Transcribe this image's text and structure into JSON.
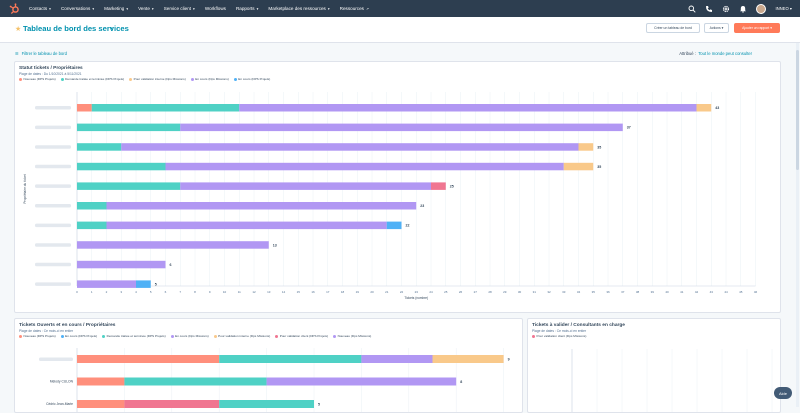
{
  "nav": {
    "items": [
      {
        "label": "Contacts",
        "caret": true
      },
      {
        "label": "Conversations",
        "caret": true
      },
      {
        "label": "Marketing",
        "caret": true
      },
      {
        "label": "Vente",
        "caret": true
      },
      {
        "label": "Service client",
        "caret": true
      },
      {
        "label": "Workflows",
        "caret": false
      },
      {
        "label": "Rapports",
        "caret": true
      },
      {
        "label": "Marketplace des ressources",
        "caret": true
      },
      {
        "label": "Ressources",
        "caret": false
      }
    ],
    "account": "INNEO",
    "icons": [
      "search-icon",
      "phone-icon",
      "gear-icon",
      "bell-icon"
    ]
  },
  "header": {
    "title": "Tableau de bord des services",
    "create_dashboard": "Créer un tableau de bord",
    "actions": "Actions",
    "add_report": "Ajouter un rapport"
  },
  "filter": {
    "link": "Filtrer le tableau de bord",
    "assigned_prefix": "Attribué :",
    "assigned_value": "Tout le monde peut consulter"
  },
  "colors": {
    "Nouveau": "#ff8f7c",
    "Demande traitée et terminée": "#4fd1c5",
    "Pour validation interne": "#f9c98a",
    "En cours": "#b197f3",
    "En cours IPS": "#4fb1f6",
    "Pour validation client": "#f07691"
  },
  "card1": {
    "title": "Statut tickets / Propriétaires",
    "subtitle": "Plage de dates : Du 1/10/2021 à 5/11/2021",
    "legend": [
      {
        "name": "Nouveau (DPS Projets)",
        "key": "Nouveau"
      },
      {
        "name": "Demande traitée et terminée (DPS Projets)",
        "key": "Demande traitée et terminée"
      },
      {
        "name": "Pour validation interne (Dps Missions)",
        "key": "Pour validation interne"
      },
      {
        "name": "En cours (Dps Missions)",
        "key": "En cours"
      },
      {
        "name": "En cours (DPS Projets)",
        "key": "En cours IPS"
      }
    ],
    "chart_data": {
      "type": "bar",
      "orientation": "horizontal",
      "stacked": true,
      "xlabel": "Tickets (nombre)",
      "ylabel": "Propriétaire du ticket",
      "xlim": [
        0,
        46
      ],
      "xticks": [
        0,
        1,
        2,
        3,
        4,
        5,
        6,
        7,
        8,
        9,
        10,
        11,
        12,
        13,
        14,
        15,
        16,
        17,
        18,
        19,
        20,
        21,
        22,
        23,
        24,
        25,
        26,
        27,
        28,
        29,
        30,
        31,
        32,
        33,
        34,
        35,
        36,
        37,
        38,
        39,
        40,
        41,
        42,
        43,
        44,
        45,
        46
      ],
      "rows": [
        {
          "total": 43,
          "segments": [
            {
              "key": "Nouveau",
              "value": 1
            },
            {
              "key": "Demande traitée et terminée",
              "value": 10
            },
            {
              "key": "En cours",
              "value": 31
            },
            {
              "key": "Pour validation interne",
              "value": 1
            }
          ]
        },
        {
          "total": 37,
          "segments": [
            {
              "key": "Demande traitée et terminée",
              "value": 7
            },
            {
              "key": "En cours",
              "value": 30
            }
          ]
        },
        {
          "total": 35,
          "segments": [
            {
              "key": "Demande traitée et terminée",
              "value": 3
            },
            {
              "key": "En cours",
              "value": 31
            },
            {
              "key": "Pour validation interne",
              "value": 1
            }
          ]
        },
        {
          "total": 35,
          "segments": [
            {
              "key": "Demande traitée et terminée",
              "value": 6
            },
            {
              "key": "En cours",
              "value": 27
            },
            {
              "key": "Pour validation interne",
              "value": 2
            }
          ]
        },
        {
          "total": 25,
          "segments": [
            {
              "key": "Demande traitée et terminée",
              "value": 7
            },
            {
              "key": "En cours",
              "value": 17
            },
            {
              "key": "Pour validation client",
              "value": 1
            }
          ]
        },
        {
          "total": 23,
          "segments": [
            {
              "key": "Demande traitée et terminée",
              "value": 2
            },
            {
              "key": "En cours",
              "value": 21
            }
          ]
        },
        {
          "total": 22,
          "segments": [
            {
              "key": "Demande traitée et terminée",
              "value": 2
            },
            {
              "key": "En cours",
              "value": 19
            },
            {
              "key": "En cours IPS",
              "value": 1
            }
          ]
        },
        {
          "total": 13,
          "segments": [
            {
              "key": "En cours",
              "value": 13
            }
          ]
        },
        {
          "total": 6,
          "segments": [
            {
              "key": "En cours",
              "value": 6
            }
          ]
        },
        {
          "total": 5,
          "segments": [
            {
              "key": "En cours",
              "value": 4
            },
            {
              "key": "En cours IPS",
              "value": 1
            }
          ]
        }
      ]
    }
  },
  "card2": {
    "title": "Tickets Ouverts et en cours / Propriétaires",
    "subtitle": "Plage de dates : Ce mois-ci en entier",
    "legend": [
      {
        "name": "Nouveau (DPS Projets)",
        "key": "Nouveau"
      },
      {
        "name": "En cours (DPS Projets)",
        "key": "En cours IPS"
      },
      {
        "name": "Demande traitée et terminée (DPS Projets)",
        "key": "Demande traitée et terminée"
      },
      {
        "name": "En cours (Dps Missions)",
        "key": "En cours"
      },
      {
        "name": "Pour validation interne (Dps Missions)",
        "key": "Pour validation interne"
      },
      {
        "name": "Pour validation client (DPS Projets)",
        "key": "Pour validation client"
      },
      {
        "name": "Nouveau (Dps Missions)",
        "key": "En cours"
      }
    ],
    "chart_data": {
      "type": "bar",
      "orientation": "horizontal",
      "stacked": true,
      "xlim": [
        0,
        9
      ],
      "rows": [
        {
          "label": "",
          "total": 9,
          "segments": [
            {
              "key": "Nouveau",
              "value": 3
            },
            {
              "key": "Demande traitée et terminée",
              "value": 3
            },
            {
              "key": "En cours",
              "value": 1.5
            },
            {
              "key": "Pour validation interne",
              "value": 1.5
            }
          ]
        },
        {
          "label": "Mélody CULON",
          "total": 8,
          "segments": [
            {
              "key": "Nouveau",
              "value": 1
            },
            {
              "key": "Demande traitée et terminée",
              "value": 3
            },
            {
              "key": "En cours",
              "value": 4
            }
          ]
        },
        {
          "label": "Cédric Jean-Marie",
          "total": 5,
          "segments": [
            {
              "key": "Nouveau",
              "value": 1
            },
            {
              "key": "Pour validation client",
              "value": 2
            },
            {
              "key": "Demande traitée et terminée",
              "value": 2
            }
          ]
        }
      ]
    }
  },
  "card3": {
    "title": "Tickets à valider / Consultants en charge",
    "subtitle": "Plage de dates : Ce mois-ci en entier",
    "legend": [
      {
        "name": "Pour validation client (Dps Missions)",
        "key": "Pour validation client"
      }
    ]
  },
  "help": {
    "label": "Aide"
  }
}
